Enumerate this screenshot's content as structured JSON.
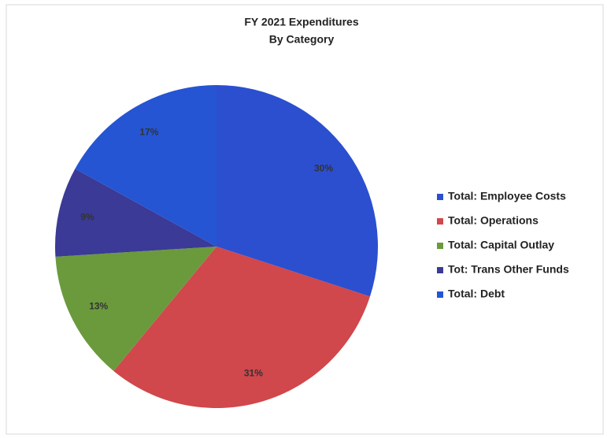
{
  "chart_data": {
    "type": "pie",
    "title": "FY 2021 Expenditures",
    "subtitle": "By Category",
    "categories": [
      "Total: Employee Costs",
      "Total: Operations",
      "Total: Capital Outlay",
      "Tot: Trans Other Funds",
      "Total: Debt"
    ],
    "values": [
      30,
      31,
      13,
      9,
      17
    ],
    "value_labels": [
      "30%",
      "31%",
      "13%",
      "9%",
      "17%"
    ],
    "colors": [
      "#2b4fcf",
      "#d0474c",
      "#6b9a3d",
      "#3b3a96",
      "#2555d3"
    ],
    "legend": "right"
  }
}
